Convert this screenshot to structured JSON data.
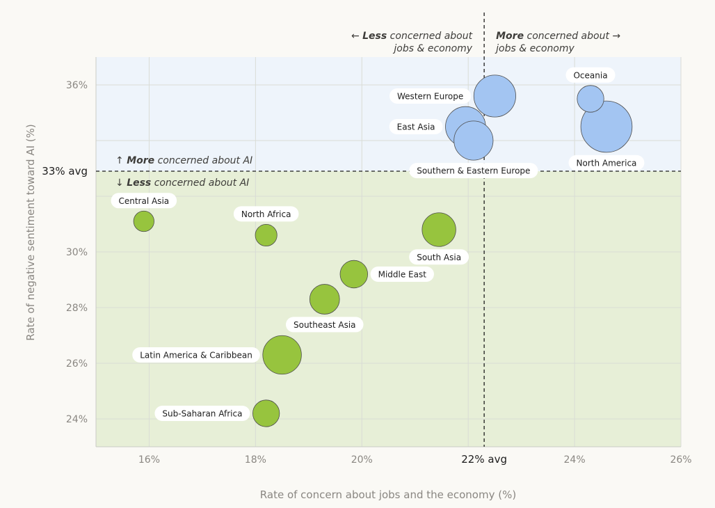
{
  "chart_data": {
    "type": "scatter",
    "xlabel": "Rate of concern about jobs and the economy (%)",
    "ylabel": "Rate of negative sentiment toward AI (%)",
    "xlim": [
      15,
      26
    ],
    "ylim": [
      23,
      37
    ],
    "x_ticks": [
      "16%",
      "18%",
      "20%",
      "22% avg",
      "24%",
      "26%"
    ],
    "x_tick_values": [
      16,
      18,
      20,
      22.3,
      24,
      26
    ],
    "y_ticks": [
      "24%",
      "26%",
      "28%",
      "30%",
      "33% avg",
      "36%"
    ],
    "y_tick_values": [
      24,
      26,
      28,
      30,
      32.9,
      36
    ],
    "x_avg": 22.3,
    "y_avg": 32.9,
    "colors": {
      "high_fill": "#a3c5f2",
      "high_region": "#eef4fb",
      "low_fill": "#97c43e",
      "low_region": "#e7efd7",
      "stroke": "#4d4d4d"
    },
    "quadrant_labels": {
      "left": {
        "bold": "Less",
        "line1": " concerned about",
        "line2": "jobs & economy",
        "arrow": "←"
      },
      "right": {
        "bold": "More",
        "line1": " concerned about",
        "line2": "jobs & economy",
        "arrow": "→"
      },
      "top": {
        "bold": "More",
        "text": " concerned about AI",
        "arrow": "↑"
      },
      "bottom": {
        "bold": "Less",
        "text": " concerned about AI",
        "arrow": "↓"
      }
    },
    "points": [
      {
        "name": "Western Europe",
        "x": 22.5,
        "y": 35.6,
        "size": 3.6,
        "group": "high"
      },
      {
        "name": "East Asia",
        "x": 21.95,
        "y": 34.5,
        "size": 3.2,
        "group": "high"
      },
      {
        "name": "Southern & Eastern Europe",
        "x": 22.1,
        "y": 34.0,
        "size": 3.0,
        "group": "high"
      },
      {
        "name": "Oceania",
        "x": 24.3,
        "y": 35.5,
        "size": 1.0,
        "group": "high"
      },
      {
        "name": "North America",
        "x": 24.6,
        "y": 34.5,
        "size": 6.0,
        "group": "high"
      },
      {
        "name": "Central Asia",
        "x": 15.9,
        "y": 31.1,
        "size": 0.4,
        "group": "low"
      },
      {
        "name": "North Africa",
        "x": 18.2,
        "y": 30.6,
        "size": 0.5,
        "group": "low"
      },
      {
        "name": "South Asia",
        "x": 21.45,
        "y": 30.8,
        "size": 2.0,
        "group": "low"
      },
      {
        "name": "Middle East",
        "x": 19.85,
        "y": 29.2,
        "size": 1.1,
        "group": "low"
      },
      {
        "name": "Southeast Asia",
        "x": 19.3,
        "y": 28.3,
        "size": 1.4,
        "group": "low"
      },
      {
        "name": "Latin America & Caribbean",
        "x": 18.5,
        "y": 26.3,
        "size": 2.9,
        "group": "low"
      },
      {
        "name": "Sub-Saharan Africa",
        "x": 18.2,
        "y": 24.2,
        "size": 1.0,
        "group": "low"
      }
    ]
  }
}
